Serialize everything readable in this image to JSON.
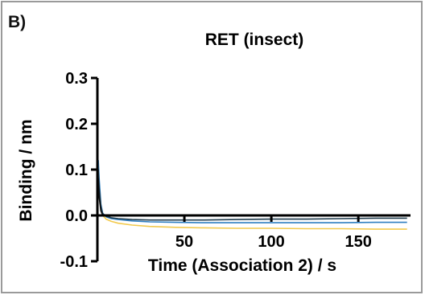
{
  "panel_label": "B)",
  "chart_data": {
    "type": "line",
    "title": "RET (insect)",
    "xlabel": "Time (Association 2) / s",
    "ylabel": "Binding / nm",
    "xlim": [
      0,
      180
    ],
    "ylim": [
      -0.1,
      0.3
    ],
    "x_ticks": [
      50,
      100,
      150
    ],
    "y_ticks": [
      -0.1,
      0.0,
      0.1,
      0.2,
      0.3
    ],
    "y_tick_labels": [
      "-0.1",
      "0.0",
      "0.1",
      "0.2",
      "0.3"
    ],
    "x_tick_labels": [
      "50",
      "100",
      "150"
    ],
    "grid": false,
    "legend": "none",
    "series": [
      {
        "color": "#f2c94c",
        "x": [
          0,
          0.5,
          1,
          2,
          3,
          5,
          8,
          12,
          20,
          30,
          45,
          60,
          80,
          100,
          120,
          140,
          160,
          178
        ],
        "y": [
          0.0,
          0.11,
          0.07,
          0.02,
          0.0,
          -0.008,
          -0.013,
          -0.017,
          -0.021,
          -0.024,
          -0.026,
          -0.027,
          -0.028,
          -0.028,
          -0.029,
          -0.029,
          -0.03,
          -0.03
        ]
      },
      {
        "color": "#2f7fc1",
        "x": [
          0,
          0.5,
          1,
          2,
          3,
          5,
          8,
          12,
          20,
          30,
          45,
          60,
          80,
          100,
          120,
          140,
          160,
          178
        ],
        "y": [
          0.0,
          0.12,
          0.08,
          0.025,
          0.005,
          -0.003,
          -0.007,
          -0.009,
          -0.012,
          -0.014,
          -0.015,
          -0.016,
          -0.016,
          -0.016,
          -0.016,
          -0.016,
          -0.015,
          -0.015
        ]
      },
      {
        "color": "#1f3b4d",
        "x": [
          0,
          0.5,
          1,
          2,
          3,
          5,
          8,
          12,
          20,
          30,
          45,
          60,
          80,
          100,
          120,
          140,
          160,
          178
        ],
        "y": [
          0.0,
          0.1,
          0.06,
          0.02,
          0.004,
          -0.002,
          -0.005,
          -0.007,
          -0.009,
          -0.01,
          -0.01,
          -0.01,
          -0.009,
          -0.008,
          -0.008,
          -0.007,
          -0.006,
          -0.006
        ]
      },
      {
        "color": "#111111",
        "x": [
          0,
          0.5,
          1,
          2,
          3,
          5,
          10,
          30,
          60,
          100,
          140,
          178
        ],
        "y": [
          0.0,
          0.08,
          0.04,
          0.01,
          0.001,
          0.0,
          0.0,
          0.0,
          0.0,
          0.0,
          0.0,
          0.0
        ]
      }
    ]
  }
}
